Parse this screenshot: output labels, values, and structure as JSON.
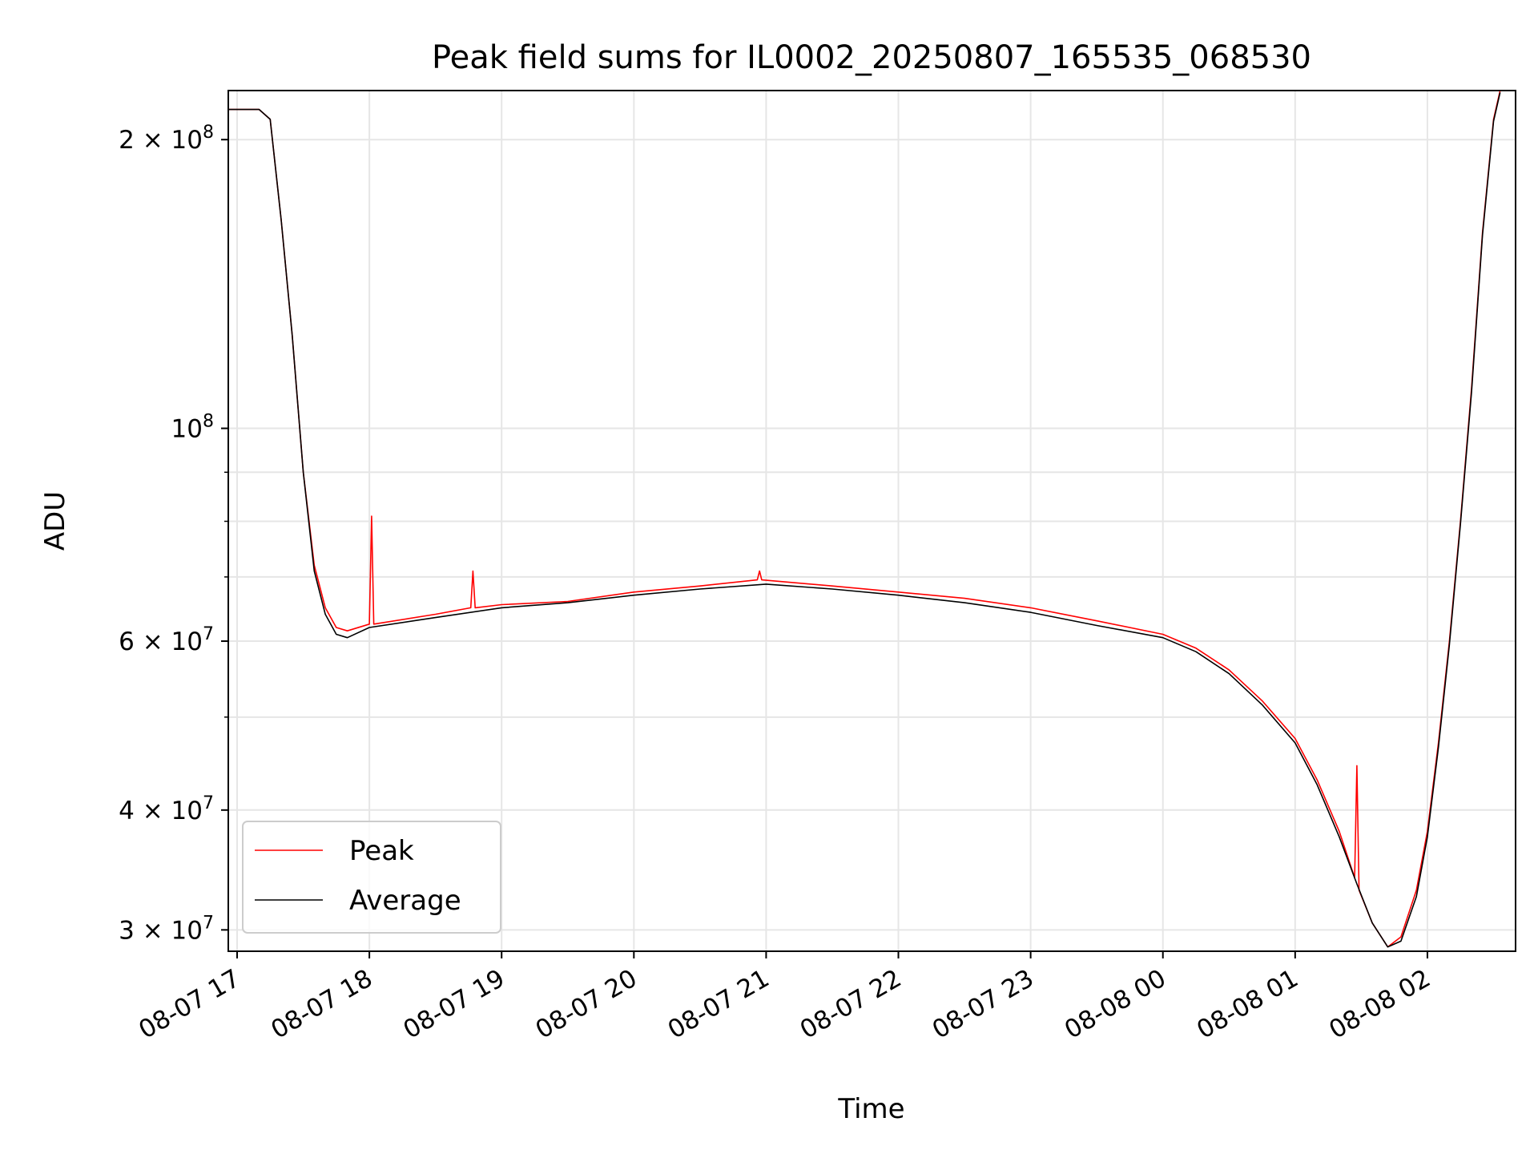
{
  "chart_data": {
    "type": "line",
    "title": "Peak field sums for IL0002_20250807_165535_068530",
    "xlabel": "Time",
    "ylabel": "ADU",
    "yscale": "log",
    "grid": true,
    "legend_position": "lower-left",
    "xlim": [
      "2025-08-07 16:56",
      "2025-08-08 02:40"
    ],
    "ylim": [
      28500000,
      225000000
    ],
    "x_ticks": [
      "08-07 17",
      "08-07 18",
      "08-07 19",
      "08-07 20",
      "08-07 21",
      "08-07 22",
      "08-07 23",
      "08-08 00",
      "08-08 01",
      "08-08 02"
    ],
    "y_ticks": [
      {
        "label": "2 × 10^8",
        "value": 200000000
      },
      {
        "label": "10^8",
        "value": 100000000
      },
      {
        "label": "6 × 10^7",
        "value": 60000000
      },
      {
        "label": "4 × 10^7",
        "value": 40000000
      },
      {
        "label": "3 × 10^7",
        "value": 30000000
      }
    ],
    "series": [
      {
        "name": "Peak",
        "color": "#ff0000",
        "x": [
          "2025-08-07 16:56",
          "2025-08-07 17:10",
          "2025-08-07 17:15",
          "2025-08-07 17:20",
          "2025-08-07 17:25",
          "2025-08-07 17:30",
          "2025-08-07 17:35",
          "2025-08-07 17:40",
          "2025-08-07 17:45",
          "2025-08-07 17:50",
          "2025-08-07 18:00",
          "2025-08-07 18:01",
          "2025-08-07 18:02",
          "2025-08-07 18:30",
          "2025-08-07 18:46",
          "2025-08-07 18:47",
          "2025-08-07 18:48",
          "2025-08-07 19:00",
          "2025-08-07 19:30",
          "2025-08-07 20:00",
          "2025-08-07 20:30",
          "2025-08-07 20:56",
          "2025-08-07 20:57",
          "2025-08-07 20:58",
          "2025-08-07 21:30",
          "2025-08-07 22:00",
          "2025-08-07 22:30",
          "2025-08-07 23:00",
          "2025-08-07 23:30",
          "2025-08-08 00:00",
          "2025-08-08 00:15",
          "2025-08-08 00:30",
          "2025-08-08 00:45",
          "2025-08-08 01:00",
          "2025-08-08 01:10",
          "2025-08-08 01:20",
          "2025-08-08 01:27",
          "2025-08-08 01:28",
          "2025-08-08 01:29",
          "2025-08-08 01:35",
          "2025-08-08 01:42",
          "2025-08-08 01:48",
          "2025-08-08 01:55",
          "2025-08-08 02:00",
          "2025-08-08 02:05",
          "2025-08-08 02:10",
          "2025-08-08 02:15",
          "2025-08-08 02:20",
          "2025-08-08 02:25",
          "2025-08-08 02:30",
          "2025-08-08 02:33"
        ],
        "y": [
          215000000,
          215000000,
          210000000,
          165000000,
          125000000,
          90000000,
          72000000,
          65000000,
          62000000,
          61500000,
          62500000,
          81000000,
          62500000,
          64000000,
          65000000,
          71000000,
          65000000,
          65500000,
          66000000,
          67500000,
          68500000,
          69500000,
          71000000,
          69500000,
          68500000,
          67500000,
          66500000,
          65000000,
          63000000,
          61000000,
          59000000,
          56000000,
          52000000,
          47500000,
          43000000,
          38000000,
          34000000,
          44500000,
          33000000,
          30500000,
          28800000,
          29500000,
          33000000,
          38000000,
          47000000,
          60000000,
          80000000,
          110000000,
          160000000,
          210000000,
          225000000
        ]
      },
      {
        "name": "Average",
        "color": "#000000",
        "x": [
          "2025-08-07 16:56",
          "2025-08-07 17:10",
          "2025-08-07 17:15",
          "2025-08-07 17:20",
          "2025-08-07 17:25",
          "2025-08-07 17:30",
          "2025-08-07 17:35",
          "2025-08-07 17:40",
          "2025-08-07 17:45",
          "2025-08-07 17:50",
          "2025-08-07 18:00",
          "2025-08-07 18:30",
          "2025-08-07 19:00",
          "2025-08-07 19:30",
          "2025-08-07 20:00",
          "2025-08-07 20:30",
          "2025-08-07 21:00",
          "2025-08-07 21:30",
          "2025-08-07 22:00",
          "2025-08-07 22:30",
          "2025-08-07 23:00",
          "2025-08-07 23:30",
          "2025-08-08 00:00",
          "2025-08-08 00:15",
          "2025-08-08 00:30",
          "2025-08-08 00:45",
          "2025-08-08 01:00",
          "2025-08-08 01:10",
          "2025-08-08 01:20",
          "2025-08-08 01:28",
          "2025-08-08 01:35",
          "2025-08-08 01:42",
          "2025-08-08 01:48",
          "2025-08-08 01:55",
          "2025-08-08 02:00",
          "2025-08-08 02:05",
          "2025-08-08 02:10",
          "2025-08-08 02:15",
          "2025-08-08 02:20",
          "2025-08-08 02:25",
          "2025-08-08 02:30",
          "2025-08-08 02:33"
        ],
        "y": [
          215000000,
          215000000,
          210000000,
          165000000,
          125000000,
          90000000,
          71000000,
          64000000,
          61000000,
          60500000,
          62000000,
          63500000,
          65000000,
          65800000,
          67000000,
          68000000,
          68800000,
          68000000,
          67000000,
          65800000,
          64300000,
          62300000,
          60500000,
          58500000,
          55500000,
          51500000,
          47000000,
          42500000,
          37500000,
          33500000,
          30500000,
          28800000,
          29200000,
          32500000,
          37500000,
          46500000,
          59500000,
          79500000,
          109000000,
          159000000,
          209000000,
          224000000
        ]
      }
    ]
  }
}
